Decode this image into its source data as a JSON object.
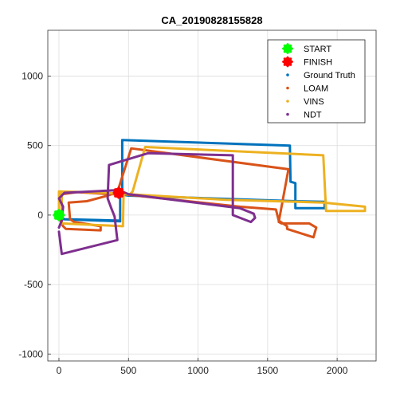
{
  "chart_data": {
    "type": "line",
    "title": "CA_20190828155828",
    "xlabel": "",
    "ylabel": "",
    "xlim": [
      -80,
      2280
    ],
    "ylim": [
      -1050,
      1330
    ],
    "xticks": [
      0,
      500,
      1000,
      1500,
      2000
    ],
    "yticks": [
      1000,
      500,
      0,
      -500,
      -1000
    ],
    "xtick_labels": [
      "0",
      "500",
      "1000",
      "1500",
      "2000"
    ],
    "ytick_labels": [
      "1000",
      "500",
      "0",
      "-500",
      "-1000"
    ],
    "grid": true,
    "legend_position": "top-right",
    "markers": [
      {
        "name": "START",
        "x": 0,
        "y": 0,
        "color": "#00ff00"
      },
      {
        "name": "FINISH",
        "x": 430,
        "y": 160,
        "color": "#ff0000"
      }
    ],
    "series": [
      {
        "name": "Ground Truth",
        "color": "#0072BD",
        "points": [
          [
            0,
            0
          ],
          [
            0,
            -25
          ],
          [
            30,
            -30
          ],
          [
            440,
            -45
          ],
          [
            440,
            130
          ],
          [
            455,
            145
          ],
          [
            455,
            540
          ],
          [
            1660,
            500
          ],
          [
            1665,
            240
          ],
          [
            1700,
            230
          ],
          [
            1700,
            50
          ],
          [
            1910,
            50
          ],
          [
            1910,
            95
          ],
          [
            1700,
            100
          ],
          [
            500,
            140
          ],
          [
            470,
            145
          ],
          [
            440,
            150
          ],
          [
            440,
            -40
          ],
          [
            40,
            -30
          ],
          [
            0,
            -10
          ]
        ]
      },
      {
        "name": "LOAM",
        "color": "#D95319",
        "points": [
          [
            0,
            0
          ],
          [
            10,
            -40
          ],
          [
            30,
            -80
          ],
          [
            50,
            -100
          ],
          [
            300,
            -110
          ],
          [
            300,
            -80
          ],
          [
            110,
            -50
          ],
          [
            80,
            -30
          ],
          [
            70,
            90
          ],
          [
            200,
            100
          ],
          [
            350,
            140
          ],
          [
            420,
            165
          ],
          [
            520,
            480
          ],
          [
            1650,
            330
          ],
          [
            1580,
            -50
          ],
          [
            1600,
            -60
          ],
          [
            1800,
            -60
          ],
          [
            1850,
            -90
          ],
          [
            1830,
            -160
          ],
          [
            1640,
            -100
          ],
          [
            1640,
            -80
          ],
          [
            1580,
            -40
          ],
          [
            1560,
            40
          ],
          [
            1300,
            60
          ],
          [
            460,
            150
          ],
          [
            380,
            150
          ],
          [
            130,
            165
          ],
          [
            20,
            150
          ]
        ]
      },
      {
        "name": "VINS",
        "color": "#EDB120",
        "points": [
          [
            0,
            0
          ],
          [
            0,
            170
          ],
          [
            350,
            160
          ],
          [
            440,
            150
          ],
          [
            510,
            150
          ],
          [
            530,
            170
          ],
          [
            620,
            490
          ],
          [
            1900,
            430
          ],
          [
            1920,
            30
          ],
          [
            2100,
            30
          ],
          [
            2200,
            30
          ],
          [
            2200,
            60
          ],
          [
            1900,
            90
          ],
          [
            1200,
            110
          ],
          [
            500,
            150
          ],
          [
            465,
            150
          ],
          [
            460,
            -80
          ],
          [
            20,
            -60
          ],
          [
            20,
            130
          ],
          [
            10,
            170
          ]
        ]
      },
      {
        "name": "NDT",
        "color": "#7E2F8E",
        "points": [
          [
            0,
            -120
          ],
          [
            20,
            -280
          ],
          [
            420,
            -180
          ],
          [
            400,
            -10
          ],
          [
            380,
            40
          ],
          [
            350,
            120
          ],
          [
            360,
            360
          ],
          [
            640,
            445
          ],
          [
            1250,
            430
          ],
          [
            1250,
            0
          ],
          [
            1380,
            -50
          ],
          [
            1410,
            -20
          ],
          [
            1400,
            10
          ],
          [
            1300,
            50
          ],
          [
            500,
            150
          ],
          [
            430,
            180
          ],
          [
            40,
            160
          ],
          [
            0,
            120
          ],
          [
            30,
            60
          ],
          [
            20,
            -40
          ],
          [
            0,
            -90
          ]
        ]
      }
    ]
  }
}
